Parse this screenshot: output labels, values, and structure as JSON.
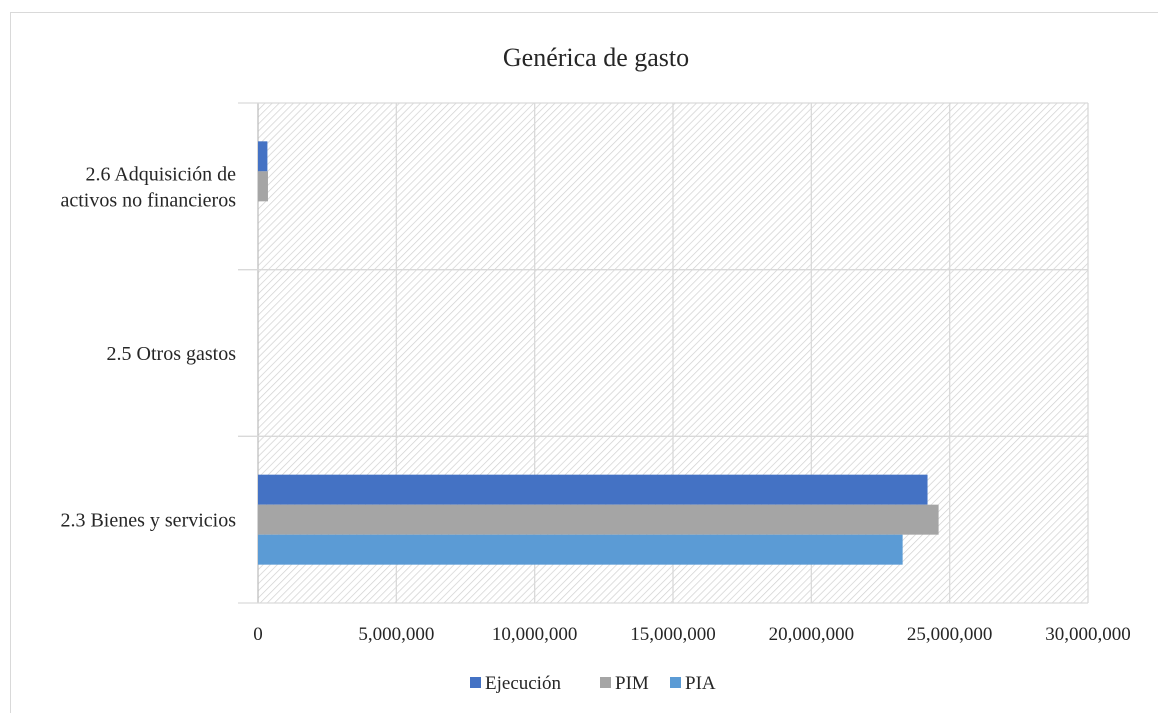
{
  "chart_data": {
    "type": "bar",
    "orientation": "horizontal",
    "title": "Genérica de gasto",
    "categories": [
      "2.3 Bienes y servicios",
      "2.5 Otros gastos",
      "2.6 Adquisición de activos no financieros"
    ],
    "category_lines": [
      [
        "2.3 Bienes y servicios"
      ],
      [
        "2.5 Otros gastos"
      ],
      [
        "2.6 Adquisición de",
        "activos no financieros"
      ]
    ],
    "series": [
      {
        "name": "Ejecución",
        "color": "#4472c4",
        "values": [
          24200000,
          0,
          340000
        ]
      },
      {
        "name": "PIM",
        "color": "#a5a5a5",
        "values": [
          24600000,
          0,
          360000
        ]
      },
      {
        "name": "PIA",
        "color": "#5b9bd5",
        "values": [
          23300000,
          0,
          0
        ]
      }
    ],
    "xlim": [
      0,
      30000000
    ],
    "xticks": [
      0,
      5000000,
      10000000,
      15000000,
      20000000,
      25000000,
      30000000
    ],
    "xtick_labels": [
      "0",
      "5,000,000",
      "10,000,000",
      "15,000,000",
      "20,000,000",
      "25,000,000",
      "30,000,000"
    ],
    "grid": true,
    "plot_background": "hatched",
    "legend_position": "bottom"
  }
}
